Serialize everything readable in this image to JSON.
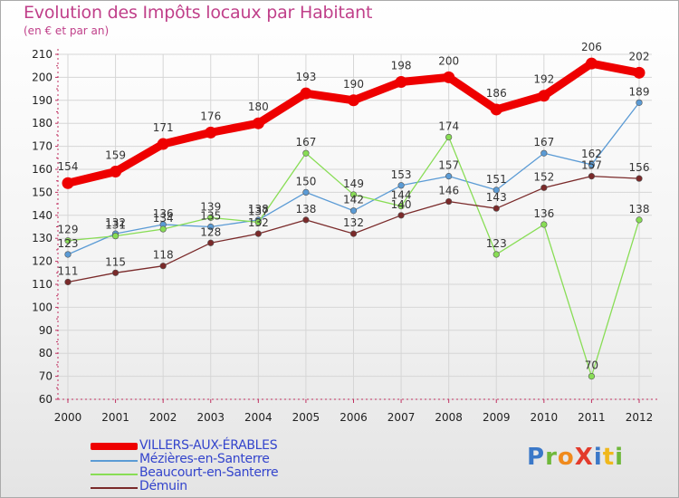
{
  "title": "Evolution des Impôts locaux par Habitant",
  "subtitle": "(en € et par an)",
  "logo": {
    "text": "ProXiti",
    "letters": [
      {
        "ch": "P",
        "color": "#3a78c8"
      },
      {
        "ch": "r",
        "color": "#6fb83a"
      },
      {
        "ch": "o",
        "color": "#f08a1c"
      },
      {
        "ch": "X",
        "color": "#e33b2c"
      },
      {
        "ch": "i",
        "color": "#3a78c8"
      },
      {
        "ch": "t",
        "color": "#f0b81c"
      },
      {
        "ch": "i",
        "color": "#6fb83a"
      }
    ]
  },
  "chart_data": {
    "type": "line",
    "title": "Evolution des Impôts locaux par Habitant",
    "subtitle": "(en € et par an)",
    "xlabel": "",
    "ylabel": "",
    "categories": [
      "2000",
      "2001",
      "2002",
      "2003",
      "2004",
      "2005",
      "2006",
      "2007",
      "2008",
      "2009",
      "2010",
      "2011",
      "2012"
    ],
    "ylim": [
      60,
      210
    ],
    "yticks": [
      60,
      70,
      80,
      90,
      100,
      110,
      120,
      130,
      140,
      150,
      160,
      170,
      180,
      190,
      200,
      210
    ],
    "grid": true,
    "legend_position": "bottom-left",
    "series": [
      {
        "name": "VILLERS-AUX-ÉRABLES",
        "color": "#ee0000",
        "emphasis": true,
        "values": [
          154,
          159,
          171,
          176,
          180,
          193,
          190,
          198,
          200,
          186,
          192,
          206,
          202
        ]
      },
      {
        "name": "Mézières-en-Santerre",
        "color": "#5b9bd5",
        "emphasis": false,
        "values": [
          123,
          132,
          136,
          135,
          138,
          150,
          142,
          153,
          157,
          151,
          167,
          162,
          189
        ]
      },
      {
        "name": "Beaucourt-en-Santerre",
        "color": "#88dd55",
        "emphasis": false,
        "values": [
          129,
          131,
          134,
          139,
          137,
          167,
          149,
          144,
          174,
          123,
          136,
          70,
          138
        ]
      },
      {
        "name": "Démuin",
        "color": "#7a2a2a",
        "emphasis": false,
        "values": [
          111,
          115,
          118,
          128,
          132,
          138,
          132,
          140,
          146,
          143,
          152,
          157,
          156
        ]
      }
    ]
  }
}
